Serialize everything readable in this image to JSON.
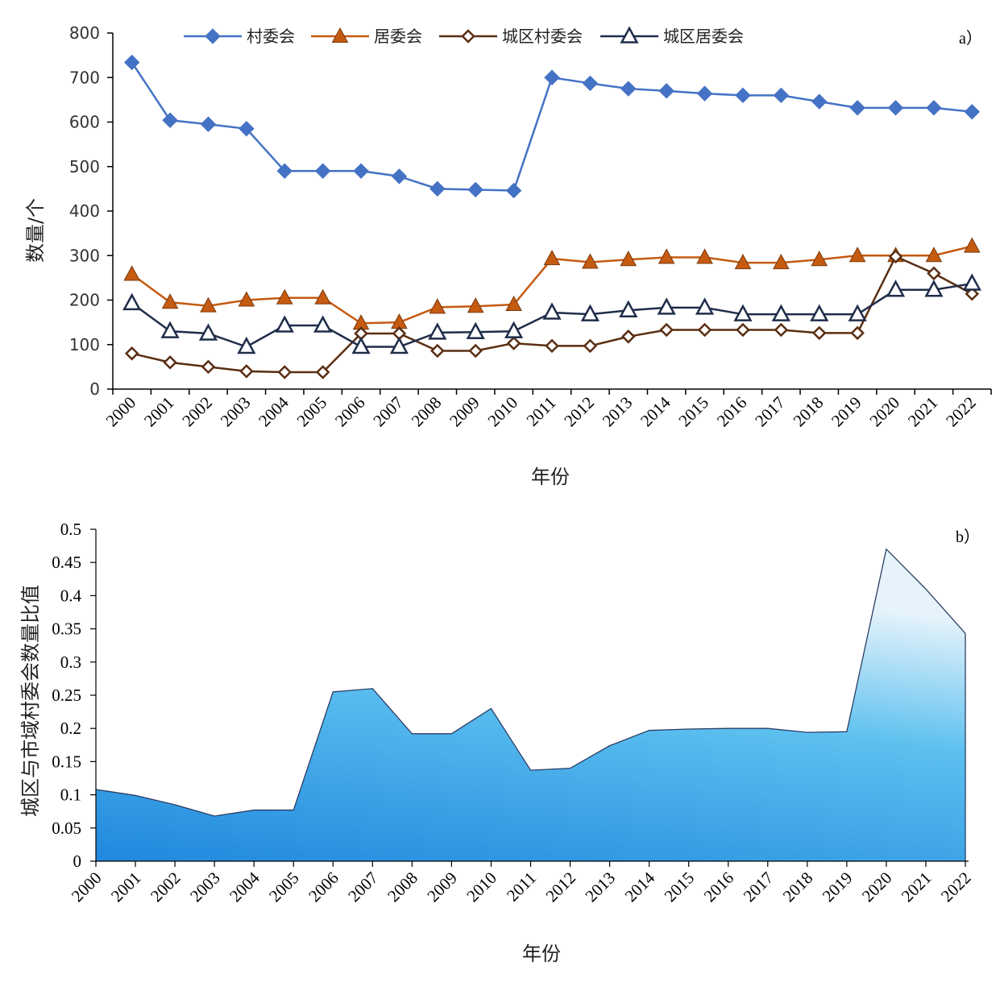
{
  "chart_data": [
    {
      "type": "line",
      "panel_label": "a）",
      "xlabel": "年份",
      "ylabel": "数量/个",
      "ylim": [
        0,
        800
      ],
      "yticks": [
        0,
        100,
        200,
        300,
        400,
        500,
        600,
        700,
        800
      ],
      "grid": false,
      "legend_position": "top",
      "categories": [
        "2000",
        "2001",
        "2002",
        "2003",
        "2004",
        "2005",
        "2006",
        "2007",
        "2008",
        "2009",
        "2010",
        "2011",
        "2012",
        "2013",
        "2014",
        "2015",
        "2016",
        "2017",
        "2018",
        "2019",
        "2020",
        "2021",
        "2022"
      ],
      "series": [
        {
          "name": "村委会",
          "color": "#4472C4",
          "marker": "diamond-filled",
          "values": [
            734,
            604,
            595,
            585,
            490,
            490,
            490,
            478,
            450,
            448,
            446,
            700,
            687,
            675,
            670,
            664,
            660,
            660,
            646,
            632,
            632,
            632,
            623
          ]
        },
        {
          "name": "居委会",
          "color": "#C55A11",
          "marker": "triangle-filled",
          "values": [
            258,
            195,
            187,
            200,
            205,
            205,
            148,
            150,
            184,
            186,
            190,
            293,
            285,
            291,
            296,
            296,
            284,
            284,
            291,
            300,
            300,
            300,
            321
          ]
        },
        {
          "name": "城区村委会",
          "color": "#5A2E12",
          "marker": "diamond-open",
          "values": [
            80,
            60,
            50,
            40,
            38,
            38,
            125,
            125,
            86,
            86,
            103,
            97,
            97,
            118,
            133,
            133,
            133,
            133,
            126,
            126,
            298,
            260,
            214
          ]
        },
        {
          "name": "城区居委会",
          "color": "#1F2D4A",
          "marker": "triangle-open",
          "values": [
            193,
            130,
            125,
            95,
            143,
            143,
            95,
            95,
            127,
            128,
            130,
            172,
            168,
            177,
            183,
            183,
            168,
            168,
            168,
            168,
            223,
            223,
            237
          ]
        }
      ]
    },
    {
      "type": "area",
      "panel_label": "b）",
      "xlabel": "年份",
      "ylabel": "城区与市域村委会数量比值",
      "ylim": [
        0,
        0.5
      ],
      "yticks": [
        "0",
        "0.05",
        "0.1",
        "0.15",
        "0.2",
        "0.25",
        "0.3",
        "0.35",
        "0.4",
        "0.45",
        "0.5"
      ],
      "grid": false,
      "fill_color_top": "#E6F3FB",
      "fill_color_mid": "#5CC0EF",
      "fill_color_bottom": "#2088DE",
      "line_color": "#2C3E66",
      "categories": [
        "2000",
        "2001",
        "2002",
        "2003",
        "2004",
        "2005",
        "2006",
        "2007",
        "2008",
        "2009",
        "2010",
        "2011",
        "2012",
        "2013",
        "2014",
        "2015",
        "2016",
        "2017",
        "2018",
        "2019",
        "2020",
        "2021",
        "2022"
      ],
      "values": [
        0.108,
        0.099,
        0.085,
        0.068,
        0.077,
        0.077,
        0.255,
        0.26,
        0.192,
        0.192,
        0.23,
        0.137,
        0.14,
        0.174,
        0.197,
        0.199,
        0.2,
        0.2,
        0.194,
        0.195,
        0.47,
        0.41,
        0.343
      ]
    }
  ]
}
